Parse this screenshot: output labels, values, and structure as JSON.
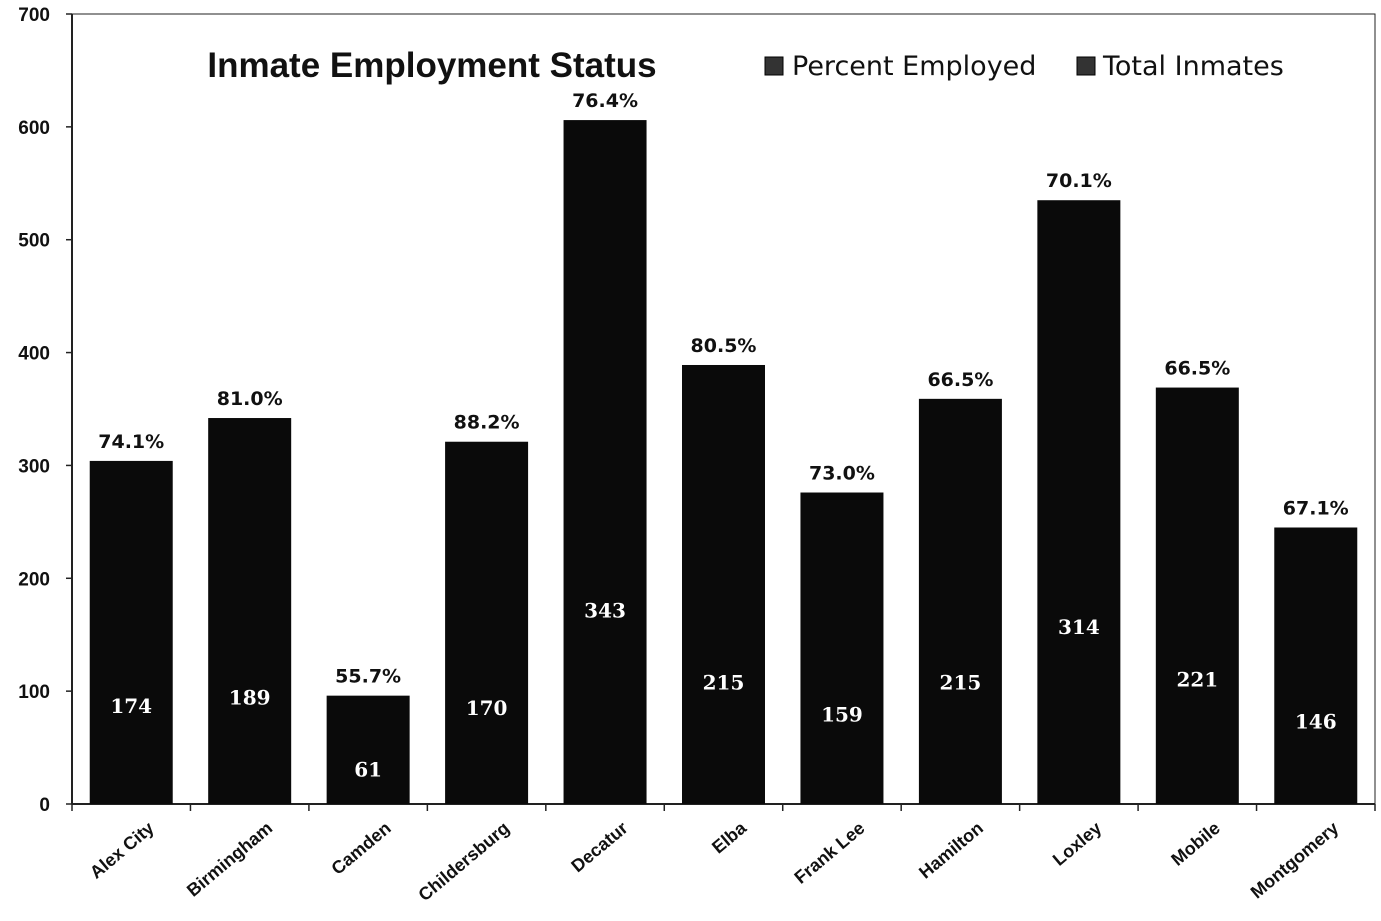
{
  "chart_data": {
    "type": "bar",
    "title": "Inmate Employment Status",
    "legend": [
      "Percent Employed",
      "Total Inmates"
    ],
    "legend_position": "top-right",
    "ylim": [
      0,
      700
    ],
    "yticks": [
      "0",
      "100",
      "200",
      "300",
      "400",
      "500",
      "600",
      "700"
    ],
    "categories": [
      "Alex City",
      "Birmingham",
      "Camden",
      "Childersburg",
      "Decatur",
      "Elba",
      "Frank Lee",
      "Hamilton",
      "Loxley",
      "Mobile",
      "Montgomery"
    ],
    "series": [
      {
        "name": "Total Inmates",
        "values": [
          304,
          342,
          96,
          321,
          606,
          389,
          276,
          359,
          535,
          369,
          245
        ]
      }
    ],
    "employed_labels": [
      "174",
      "189",
      "61",
      "170",
      "343",
      "215",
      "159",
      "215",
      "314",
      "221",
      "146"
    ],
    "percent_labels": [
      "74.1%",
      "81.0%",
      "55.7%",
      "88.2%",
      "76.4%",
      "80.5%",
      "73.0%",
      "66.5%",
      "70.1%",
      "66.5%",
      "67.1%"
    ],
    "colors": {
      "bar": "#0a0a0a",
      "axis": "#222222"
    }
  }
}
